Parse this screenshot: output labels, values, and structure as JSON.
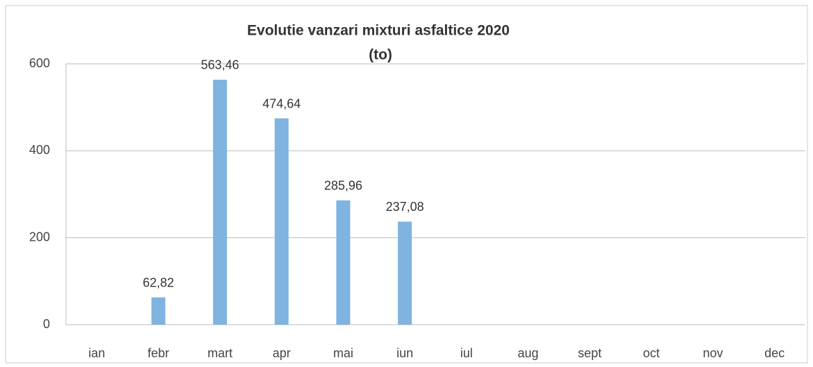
{
  "chart_data": {
    "type": "bar",
    "title": "Evolutie vanzari mixturi asfaltice 2020",
    "subtitle": "(to)",
    "categories": [
      "ian",
      "febr",
      "mart",
      "apr",
      "mai",
      "iun",
      "iul",
      "aug",
      "sept",
      "oct",
      "nov",
      "dec"
    ],
    "values": [
      null,
      62.82,
      563.46,
      474.64,
      285.96,
      237.08,
      null,
      null,
      null,
      null,
      null,
      null
    ],
    "value_labels": [
      null,
      "62,82",
      "563,46",
      "474,64",
      "285,96",
      "237,08",
      null,
      null,
      null,
      null,
      null,
      null
    ],
    "color": "#7fb3e0",
    "ylim": [
      0,
      600
    ],
    "yticks": [
      0,
      200,
      400,
      600
    ],
    "grid": true
  }
}
